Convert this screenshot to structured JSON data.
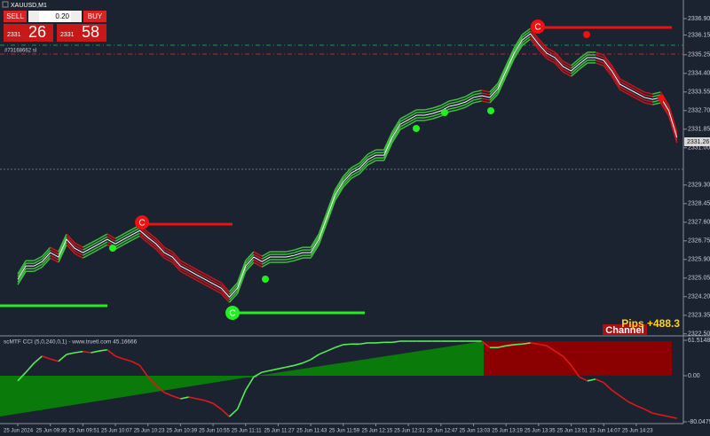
{
  "toolbar": {
    "symbol": "XAUUSD,M1",
    "sell": "SELL",
    "buy": "BUY",
    "lot": "0.20",
    "sell_price_small": "2331",
    "sell_price_big": "26",
    "buy_price_small": "2331",
    "buy_price_big": "58",
    "order_label": "#73168662 sl"
  },
  "signal_label": "C",
  "pips_label": "Pips +488.3",
  "channel_label": "Channel",
  "current_price": "2331.26",
  "chart_data": [
    {
      "type": "line",
      "mid_color": "#ffffff",
      "up_color": "#3fbf3f",
      "down_color": "#c8161c",
      "ylim": [
        2322.45,
        2337.75
      ],
      "yticks": [
        {
          "value": 2336.9,
          "label": "2336.90"
        },
        2336.15,
        2335.25,
        {
          "value": 2334.4,
          "label": "2334.40"
        },
        2333.55,
        {
          "value": 2332.7,
          "label": "2332.70"
        },
        2331.85,
        {
          "value": 2331,
          "label": "2331.00"
        },
        {
          "value": 2329.3,
          "label": "2329.30"
        },
        2328.45,
        {
          "value": 2327.6,
          "label": "2327.60"
        },
        2326.75,
        {
          "value": 2325.9,
          "label": "2325.90"
        },
        2325.05,
        {
          "value": 2324.2,
          "label": "2324.20"
        },
        2323.35,
        {
          "value": 2322.5,
          "label": "2322.50"
        }
      ],
      "values": [
        2324.99,
        2325.6,
        2325.6,
        2325.8,
        2326.21,
        2326.01,
        2326.82,
        2326.41,
        2326.21,
        2326.41,
        2326.61,
        2326.82,
        2326.61,
        2326.82,
        2327.02,
        2327.22,
        2326.9,
        2326.61,
        2326.21,
        2326.01,
        2325.6,
        2325.4,
        2325.19,
        2324.99,
        2324.79,
        2324.59,
        2324.18,
        2324.59,
        2325.6,
        2326.01,
        2325.8,
        2326.01,
        2326.01,
        2326.01,
        2326.09,
        2326.21,
        2326.21,
        2326.82,
        2327.83,
        2328.84,
        2329.45,
        2329.85,
        2330.06,
        2330.46,
        2330.66,
        2330.66,
        2331.47,
        2332.08,
        2332.28,
        2332.49,
        2332.49,
        2332.57,
        2332.69,
        2332.89,
        2332.97,
        2333.09,
        2333.3,
        2333.38,
        2333.3,
        2333.7,
        2334.51,
        2335.32,
        2335.93,
        2336.21,
        2335.73,
        2335.32,
        2335.12,
        2334.71,
        2334.51,
        2334.83,
        2335.12,
        2335.12,
        2334.99,
        2334.51,
        2333.9,
        2333.7,
        2333.5,
        2333.3,
        2333.21,
        2333.3,
        2332.69,
        2331.47
      ]
    },
    {
      "type": "line",
      "title": "scMTF CCI (5,0,240,0,1) - www.truetl.com 45.16666",
      "up_color": "#55ee55",
      "down_color": "#e01818",
      "ylim": [
        -83.1,
        67.7
      ],
      "yticks": [
        61.51489,
        {
          "value": 0,
          "label": "0.00"
        },
        -80.04792
      ],
      "categories": [
        "25 Jun 2024",
        null,
        null,
        null,
        "25 Jun 09:35",
        null,
        null,
        null,
        "25 Jun 09:51",
        null,
        null,
        null,
        "25 Jun 10:07",
        null,
        null,
        null,
        "25 Jun 10:23",
        null,
        null,
        null,
        "25 Jun 10:39",
        null,
        null,
        null,
        "25 Jun 10:55",
        null,
        null,
        null,
        "25 Jun 11:11",
        null,
        null,
        null,
        "25 Jun 11:27",
        null,
        null,
        null,
        "25 Jun 11:43",
        null,
        null,
        null,
        "25 Jun 11:59",
        null,
        null,
        null,
        "25 Jun 12:15",
        null,
        null,
        null,
        "25 Jun 12:31",
        null,
        null,
        null,
        "25 Jun 12:47",
        null,
        null,
        null,
        "25 Jun 13:03",
        null,
        null,
        null,
        "25 Jun 13:19",
        null,
        null,
        null,
        "25 Jun 13:35",
        null,
        null,
        null,
        "25 Jun 13:51",
        null,
        null,
        null,
        "25 Jun 14:07",
        null,
        null,
        null,
        "25 Jun 14:23",
        null,
        null,
        null,
        null,
        null
      ],
      "values": [
        -9,
        6,
        22,
        34,
        29,
        25,
        37,
        40,
        42,
        40,
        43,
        45,
        34,
        29,
        25,
        18,
        -2,
        -17,
        -29,
        -35,
        -40,
        -37,
        -40,
        -43,
        -48,
        -58,
        -71,
        -58,
        -25,
        -2,
        6,
        9,
        12,
        15,
        18,
        22,
        28,
        37,
        43,
        49,
        54,
        55,
        55,
        57,
        57,
        58,
        58,
        60,
        60,
        60,
        60,
        60,
        60,
        60,
        60,
        60,
        60,
        60,
        49,
        49,
        52,
        54,
        55,
        57,
        55,
        52,
        43,
        34,
        18,
        -2,
        -9,
        -6,
        -12,
        -25,
        -35,
        -45,
        -52,
        -58,
        -65,
        -68,
        -71,
        -74
      ]
    }
  ]
}
